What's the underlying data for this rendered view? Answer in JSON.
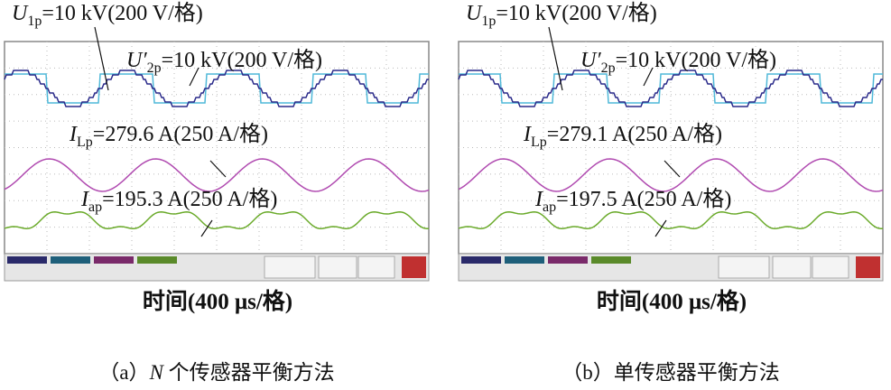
{
  "panels": [
    {
      "labels": [
        {
          "symbol": "U",
          "sub": "1p",
          "text": "=10 kV(200 V/格)"
        },
        {
          "symbol": "U′",
          "sub": "2p",
          "text": "=10 kV(200 V/格)"
        },
        {
          "symbol": "I",
          "sub": "Lp",
          "text": "=279.6 A(250 A/格)"
        },
        {
          "symbol": "I",
          "sub": "ap",
          "text": "=195.3 A(250 A/格)"
        }
      ],
      "xlabel": "时间(400 μs/格)",
      "caption": {
        "prefix": "（a）",
        "italic": "N",
        "text": " 个传感器平衡方法"
      }
    },
    {
      "labels": [
        {
          "symbol": "U",
          "sub": "1p",
          "text": "=10 kV(200 V/格)"
        },
        {
          "symbol": "U′",
          "sub": "2p",
          "text": "=10 kV(200 V/格)"
        },
        {
          "symbol": "I",
          "sub": "Lp",
          "text": "=279.1 A(250 A/格)"
        },
        {
          "symbol": "I",
          "sub": "ap",
          "text": "=197.5 A(250 A/格)"
        }
      ],
      "xlabel": "时间(400 μs/格)",
      "caption": {
        "prefix": "（b）",
        "italic": "",
        "text": "单传感器平衡方法"
      }
    }
  ]
}
